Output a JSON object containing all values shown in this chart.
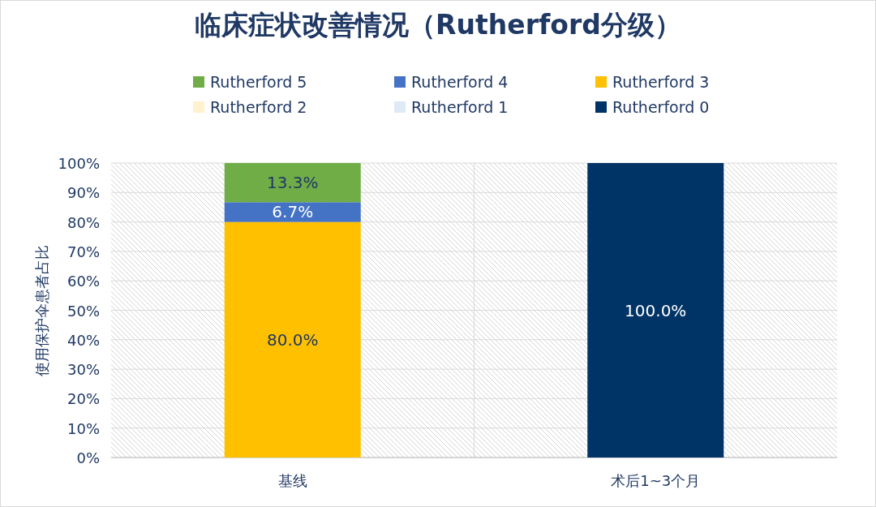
{
  "chart_data": {
    "type": "bar",
    "title": "临床症状改善情况（Rutherford分级）",
    "ylabel": "使用保护伞患者占比",
    "categories": [
      "基线",
      "术后1~3个月"
    ],
    "stacked": true,
    "legend": "top",
    "grid": "y",
    "ylim": [
      0,
      100
    ],
    "yticks": [
      {
        "value": 0,
        "label": "0%"
      },
      {
        "value": 10,
        "label": "10%"
      },
      {
        "value": 20,
        "label": "20%"
      },
      {
        "value": 30,
        "label": "30%"
      },
      {
        "value": 40,
        "label": "40%"
      },
      {
        "value": 50,
        "label": "50%"
      },
      {
        "value": 60,
        "label": "60%"
      },
      {
        "value": 70,
        "label": "70%"
      },
      {
        "value": 80,
        "label": "80%"
      },
      {
        "value": 90,
        "label": "90%"
      },
      {
        "value": 100,
        "label": "100%"
      }
    ],
    "series": [
      {
        "name": "Rutherford 0",
        "color": "#003366",
        "values": [
          0,
          100.0
        ],
        "value_labels": [
          null,
          "100.0%"
        ]
      },
      {
        "name": "Rutherford 1",
        "color": "#deebf7",
        "values": [
          0,
          0
        ],
        "value_labels": [
          null,
          null
        ]
      },
      {
        "name": "Rutherford 2",
        "color": "#fff2cc",
        "values": [
          0,
          0
        ],
        "value_labels": [
          null,
          null
        ]
      },
      {
        "name": "Rutherford 3",
        "color": "#ffc000",
        "values": [
          80.0,
          0
        ],
        "value_labels": [
          "80.0%",
          null
        ]
      },
      {
        "name": "Rutherford 4",
        "color": "#4472c4",
        "values": [
          6.7,
          0
        ],
        "value_labels": [
          "6.7%",
          null
        ]
      },
      {
        "name": "Rutherford 5",
        "color": "#70ad47",
        "values": [
          13.3,
          0
        ],
        "value_labels": [
          "13.3%",
          null
        ]
      }
    ]
  }
}
